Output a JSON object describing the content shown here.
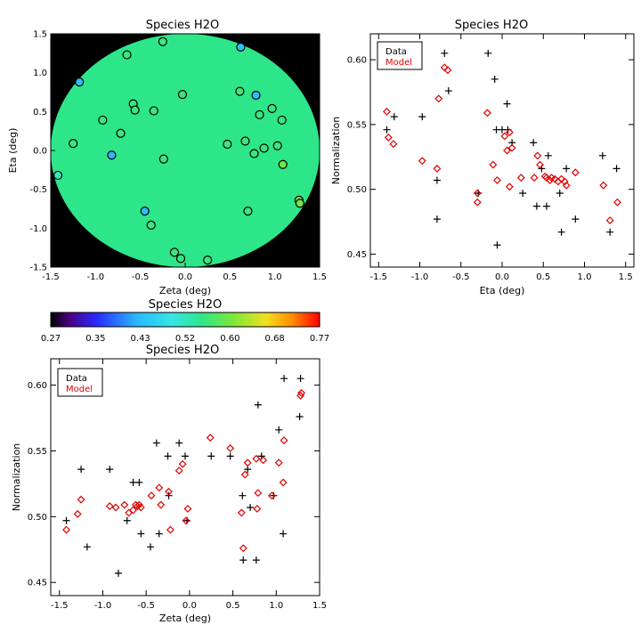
{
  "colors": {
    "data_marker": "#000000",
    "model_marker": "#e00000",
    "field_bg": "#000000"
  },
  "chart_data": [
    {
      "id": "map",
      "type": "heatmap",
      "title": "Species H2O",
      "xlabel": "Zeta (deg)",
      "ylabel": "Eta (deg)",
      "xlim": [
        -1.5,
        1.5
      ],
      "ylim": [
        -1.5,
        1.5
      ],
      "xticks": [
        "-1.5",
        "-1.0",
        "-0.5",
        "0.0",
        "0.5",
        "1.0",
        "1.5"
      ],
      "yticks": [
        "-1.5",
        "-1.0",
        "-0.5",
        "0.0",
        "0.5",
        "1.0",
        "1.5"
      ],
      "field_radius": 1.5,
      "points": [
        {
          "zeta": -1.42,
          "eta": -0.32,
          "v": 0.52
        },
        {
          "zeta": -1.18,
          "eta": 0.88,
          "v": 0.44
        },
        {
          "zeta": -1.25,
          "eta": 0.09,
          "v": 0.56
        },
        {
          "zeta": -0.92,
          "eta": 0.39,
          "v": 0.56
        },
        {
          "zeta": -0.82,
          "eta": -0.06,
          "v": 0.43
        },
        {
          "zeta": -0.72,
          "eta": 0.22,
          "v": 0.56
        },
        {
          "zeta": -0.65,
          "eta": 1.23,
          "v": 0.56
        },
        {
          "zeta": -0.58,
          "eta": 0.6,
          "v": 0.56
        },
        {
          "zeta": -0.56,
          "eta": 0.52,
          "v": 0.56
        },
        {
          "zeta": -0.38,
          "eta": -0.96,
          "v": 0.56
        },
        {
          "zeta": -0.45,
          "eta": -0.78,
          "v": 0.44
        },
        {
          "zeta": -0.35,
          "eta": 0.51,
          "v": 0.56
        },
        {
          "zeta": -0.25,
          "eta": 1.4,
          "v": 0.56
        },
        {
          "zeta": -0.24,
          "eta": -0.11,
          "v": 0.56
        },
        {
          "zeta": -0.12,
          "eta": -1.31,
          "v": 0.56
        },
        {
          "zeta": -0.05,
          "eta": -1.39,
          "v": 0.56
        },
        {
          "zeta": -0.03,
          "eta": 0.72,
          "v": 0.56
        },
        {
          "zeta": 0.25,
          "eta": -1.41,
          "v": 0.56
        },
        {
          "zeta": 0.47,
          "eta": 0.08,
          "v": 0.56
        },
        {
          "zeta": 0.61,
          "eta": 0.76,
          "v": 0.56
        },
        {
          "zeta": 0.62,
          "eta": 1.33,
          "v": 0.44
        },
        {
          "zeta": 0.67,
          "eta": 0.12,
          "v": 0.56
        },
        {
          "zeta": 0.7,
          "eta": -0.78,
          "v": 0.56
        },
        {
          "zeta": 0.77,
          "eta": -0.04,
          "v": 0.56
        },
        {
          "zeta": 0.79,
          "eta": 0.71,
          "v": 0.44
        },
        {
          "zeta": 0.83,
          "eta": 0.46,
          "v": 0.56
        },
        {
          "zeta": 0.88,
          "eta": 0.03,
          "v": 0.56
        },
        {
          "zeta": 0.97,
          "eta": 0.54,
          "v": 0.56
        },
        {
          "zeta": 1.03,
          "eta": 0.06,
          "v": 0.56
        },
        {
          "zeta": 1.08,
          "eta": 0.39,
          "v": 0.56
        },
        {
          "zeta": 1.09,
          "eta": -0.18,
          "v": 0.6
        },
        {
          "zeta": 1.27,
          "eta": -0.64,
          "v": 0.6
        },
        {
          "zeta": 1.28,
          "eta": -0.68,
          "v": 0.6
        }
      ]
    },
    {
      "id": "colorbar",
      "type": "colorbar",
      "title": "Species H2O",
      "range": [
        0.27,
        0.77
      ],
      "tick_labels": [
        "0.27",
        "0.35",
        "0.43",
        "0.52",
        "0.60",
        "0.68",
        "0.77"
      ]
    },
    {
      "id": "eta_plot",
      "type": "scatter",
      "title": "Species H2O",
      "xlabel": "Eta (deg)",
      "ylabel": "Normalization",
      "xlim": [
        -1.6,
        1.6
      ],
      "ylim": [
        0.44,
        0.62
      ],
      "xticks": [
        "-1.5",
        "-1.0",
        "-0.5",
        "0.0",
        "0.5",
        "1.0",
        "1.5"
      ],
      "yticks": [
        "0.45",
        "0.50",
        "0.55",
        "0.60"
      ],
      "legend": [
        "Data",
        "Model"
      ],
      "series": [
        {
          "name": "Data",
          "marker": "plus",
          "points": [
            [
              -1.4,
              0.546
            ],
            [
              -1.31,
              0.556
            ],
            [
              -0.97,
              0.556
            ],
            [
              -0.79,
              0.507
            ],
            [
              -0.79,
              0.477
            ],
            [
              -0.7,
              0.605
            ],
            [
              -0.65,
              0.576
            ],
            [
              -0.29,
              0.497
            ],
            [
              -0.17,
              0.605
            ],
            [
              -0.09,
              0.585
            ],
            [
              -0.07,
              0.546
            ],
            [
              -0.06,
              0.457
            ],
            [
              0.0,
              0.546
            ],
            [
              0.06,
              0.566
            ],
            [
              0.07,
              0.546
            ],
            [
              0.12,
              0.536
            ],
            [
              0.25,
              0.497
            ],
            [
              0.38,
              0.536
            ],
            [
              0.42,
              0.487
            ],
            [
              0.48,
              0.516
            ],
            [
              0.54,
              0.487
            ],
            [
              0.56,
              0.526
            ],
            [
              0.7,
              0.497
            ],
            [
              0.72,
              0.467
            ],
            [
              0.78,
              0.516
            ],
            [
              0.89,
              0.477
            ],
            [
              1.22,
              0.526
            ],
            [
              1.31,
              0.467
            ],
            [
              1.39,
              0.516
            ]
          ]
        },
        {
          "name": "Model",
          "marker": "diamond",
          "points": [
            [
              -1.4,
              0.56
            ],
            [
              -1.38,
              0.54
            ],
            [
              -1.32,
              0.535
            ],
            [
              -0.97,
              0.522
            ],
            [
              -0.79,
              0.516
            ],
            [
              -0.77,
              0.57
            ],
            [
              -0.7,
              0.594
            ],
            [
              -0.66,
              0.592
            ],
            [
              -0.3,
              0.49
            ],
            [
              -0.3,
              0.497
            ],
            [
              -0.18,
              0.559
            ],
            [
              -0.11,
              0.519
            ],
            [
              -0.06,
              0.507
            ],
            [
              0.03,
              0.541
            ],
            [
              0.06,
              0.53
            ],
            [
              0.09,
              0.544
            ],
            [
              0.09,
              0.502
            ],
            [
              0.12,
              0.532
            ],
            [
              0.23,
              0.509
            ],
            [
              0.39,
              0.509
            ],
            [
              0.43,
              0.526
            ],
            [
              0.46,
              0.519
            ],
            [
              0.52,
              0.51
            ],
            [
              0.54,
              0.509
            ],
            [
              0.58,
              0.507
            ],
            [
              0.6,
              0.509
            ],
            [
              0.64,
              0.508
            ],
            [
              0.68,
              0.506
            ],
            [
              0.72,
              0.508
            ],
            [
              0.76,
              0.506
            ],
            [
              0.78,
              0.503
            ],
            [
              0.89,
              0.513
            ],
            [
              1.23,
              0.503
            ],
            [
              1.31,
              0.476
            ],
            [
              1.4,
              0.49
            ]
          ]
        }
      ]
    },
    {
      "id": "zeta_plot",
      "type": "scatter",
      "title": "Species H2O",
      "xlabel": "Zeta (deg)",
      "ylabel": "Normalization",
      "xlim": [
        -1.6,
        1.5
      ],
      "ylim": [
        0.44,
        0.62
      ],
      "xticks": [
        "-1.5",
        "-1.0",
        "-0.5",
        "0.0",
        "0.5",
        "1.0",
        "1.5"
      ],
      "yticks": [
        "0.45",
        "0.50",
        "0.55",
        "0.60"
      ],
      "legend": [
        "Data",
        "Model"
      ],
      "series": [
        {
          "name": "Data",
          "marker": "plus",
          "points": [
            [
              -1.42,
              0.497
            ],
            [
              -1.25,
              0.536
            ],
            [
              -1.18,
              0.477
            ],
            [
              -0.92,
              0.536
            ],
            [
              -0.82,
              0.457
            ],
            [
              -0.72,
              0.497
            ],
            [
              -0.65,
              0.526
            ],
            [
              -0.58,
              0.526
            ],
            [
              -0.56,
              0.487
            ],
            [
              -0.45,
              0.477
            ],
            [
              -0.38,
              0.556
            ],
            [
              -0.35,
              0.487
            ],
            [
              -0.25,
              0.546
            ],
            [
              -0.24,
              0.516
            ],
            [
              -0.12,
              0.556
            ],
            [
              -0.05,
              0.546
            ],
            [
              -0.03,
              0.497
            ],
            [
              0.25,
              0.546
            ],
            [
              0.47,
              0.546
            ],
            [
              0.61,
              0.516
            ],
            [
              0.62,
              0.467
            ],
            [
              0.67,
              0.536
            ],
            [
              0.7,
              0.507
            ],
            [
              0.77,
              0.467
            ],
            [
              0.79,
              0.585
            ],
            [
              0.83,
              0.546
            ],
            [
              0.97,
              0.516
            ],
            [
              1.03,
              0.566
            ],
            [
              1.08,
              0.487
            ],
            [
              1.09,
              0.605
            ],
            [
              1.27,
              0.576
            ],
            [
              1.28,
              0.605
            ]
          ]
        },
        {
          "name": "Model",
          "marker": "diamond",
          "points": [
            [
              -1.42,
              0.49
            ],
            [
              -1.29,
              0.502
            ],
            [
              -1.25,
              0.513
            ],
            [
              -0.92,
              0.508
            ],
            [
              -0.85,
              0.507
            ],
            [
              -0.75,
              0.509
            ],
            [
              -0.7,
              0.503
            ],
            [
              -0.65,
              0.505
            ],
            [
              -0.62,
              0.509
            ],
            [
              -0.6,
              0.508
            ],
            [
              -0.58,
              0.509
            ],
            [
              -0.56,
              0.507
            ],
            [
              -0.44,
              0.516
            ],
            [
              -0.35,
              0.522
            ],
            [
              -0.33,
              0.509
            ],
            [
              -0.24,
              0.519
            ],
            [
              -0.22,
              0.49
            ],
            [
              -0.12,
              0.535
            ],
            [
              -0.08,
              0.54
            ],
            [
              -0.04,
              0.497
            ],
            [
              -0.02,
              0.506
            ],
            [
              0.24,
              0.56
            ],
            [
              0.47,
              0.552
            ],
            [
              0.6,
              0.503
            ],
            [
              0.62,
              0.476
            ],
            [
              0.64,
              0.532
            ],
            [
              0.67,
              0.541
            ],
            [
              0.77,
              0.544
            ],
            [
              0.78,
              0.506
            ],
            [
              0.79,
              0.518
            ],
            [
              0.85,
              0.543
            ],
            [
              0.95,
              0.516
            ],
            [
              1.03,
              0.541
            ],
            [
              1.08,
              0.526
            ],
            [
              1.09,
              0.558
            ],
            [
              1.28,
              0.592
            ],
            [
              1.29,
              0.594
            ]
          ]
        }
      ]
    }
  ]
}
